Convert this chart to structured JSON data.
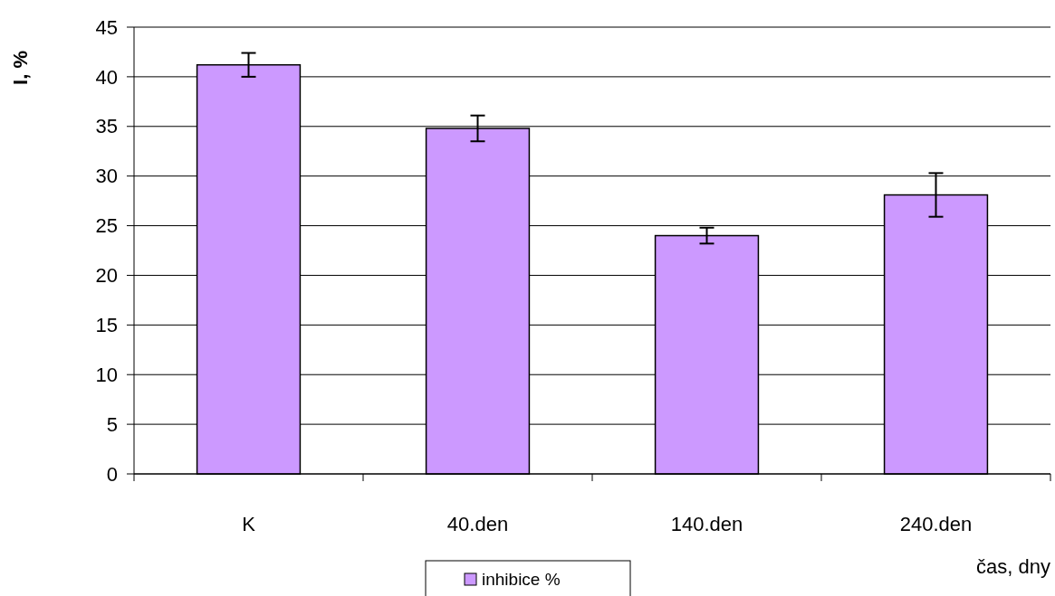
{
  "chart_data": {
    "type": "bar",
    "xlabel": "čas, dny",
    "ylabel": "I, %",
    "categories": [
      "K",
      "40.den",
      "140.den",
      "240.den"
    ],
    "series": [
      {
        "name": "inhibice %",
        "color": "#cc99ff",
        "values": [
          41.2,
          34.8,
          24.0,
          28.1
        ],
        "errors": [
          1.2,
          1.3,
          0.8,
          2.2
        ]
      }
    ],
    "ylim": [
      0,
      45
    ],
    "yticks": [
      0,
      5,
      10,
      15,
      20,
      25,
      30,
      35,
      40,
      45
    ],
    "grid": "y",
    "legend": "bottom"
  }
}
